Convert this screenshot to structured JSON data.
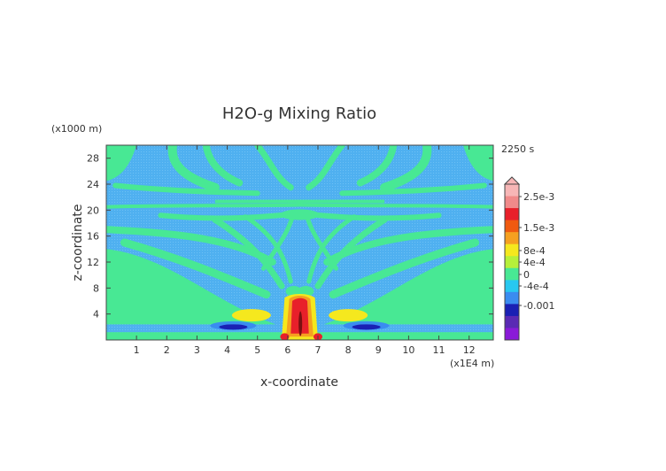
{
  "chart_data": {
    "type": "heatmap",
    "title": "H2O-g Mixing Ratio",
    "xlabel": "x-coordinate",
    "ylabel": "z-coordinate",
    "x_unit": "(x1E4 m)",
    "y_unit": "(x1000 m)",
    "time_label": "2250 s",
    "xlim": [
      0,
      12.8
    ],
    "ylim": [
      0,
      30
    ],
    "x_ticks": [
      "1",
      "2",
      "3",
      "4",
      "5",
      "6",
      "7",
      "8",
      "9",
      "10",
      "11",
      "12"
    ],
    "y_ticks": [
      "4",
      "8",
      "12",
      "16",
      "20",
      "24",
      "28"
    ],
    "colorbar": {
      "labels": [
        "2.5e-3",
        "1.5e-3",
        "8e-4",
        "4e-4",
        "0",
        "-4e-4",
        "-0.001"
      ],
      "colors": [
        "#f7b6b6",
        "#f08a8a",
        "#e8202a",
        "#f05a10",
        "#f5a020",
        "#f5e81e",
        "#b6f03a",
        "#48e894",
        "#28c8f0",
        "#3a8cf0",
        "#1a20b4",
        "#5a2ab4",
        "#8a1ad8"
      ],
      "background_value": "0",
      "background_color": "#4fb0f0"
    },
    "features": [
      {
        "name": "central maximum",
        "x": 6.45,
        "z": 4.5,
        "level": "2.5e-3"
      },
      {
        "name": "positive lobe left",
        "x": 4.9,
        "z": 3.5,
        "level": "4e-4"
      },
      {
        "name": "positive lobe right",
        "x": 8.0,
        "z": 3.5,
        "level": "4e-4"
      },
      {
        "name": "negative lobe left",
        "x": 4.2,
        "z": 2.0,
        "level": "-4e-4"
      },
      {
        "name": "negative lobe right",
        "x": 8.6,
        "z": 2.0,
        "level": "-4e-4"
      }
    ]
  }
}
